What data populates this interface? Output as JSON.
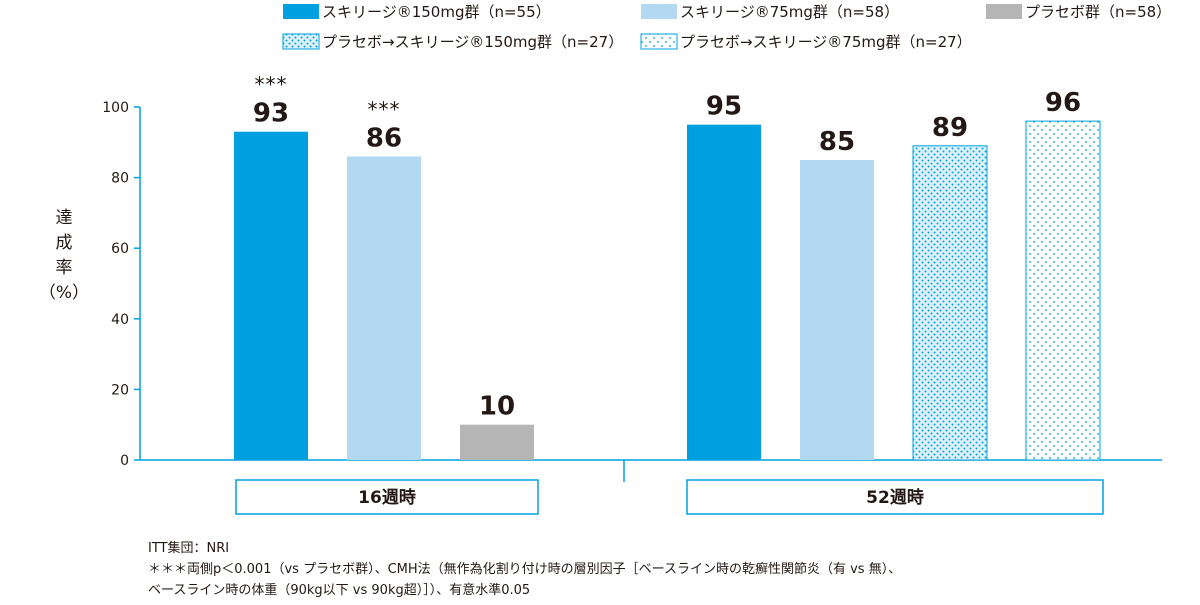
{
  "chart_data": {
    "type": "bar",
    "ylabel_chars": [
      "達",
      "成",
      "率"
    ],
    "ylabel_unit": "（%）",
    "ylim": [
      0,
      100
    ],
    "yticks": [
      0,
      20,
      40,
      60,
      80,
      100
    ],
    "grid": false,
    "legend_position": "top",
    "series": [
      {
        "name": "スキリージ®150mg群（n=55）",
        "color": "#00a0e0",
        "pattern": "solid"
      },
      {
        "name": "スキリージ®75mg群（n=58）",
        "color": "#b3d9f2",
        "pattern": "solid"
      },
      {
        "name": "プラセボ群（n=58）",
        "color": "#b5b5b6",
        "pattern": "solid"
      },
      {
        "name": "プラセボ→スキリージ®150mg群（n=27）",
        "color": "#00a0e0",
        "pattern": "dots-dense"
      },
      {
        "name": "プラセボ→スキリージ®75mg群（n=27）",
        "color": "#00a0e0",
        "pattern": "dots-sparse"
      }
    ],
    "groups": [
      {
        "label": "16週時",
        "bars": [
          {
            "series": 0,
            "value": 93,
            "label": "93",
            "sig": "***"
          },
          {
            "series": 1,
            "value": 86,
            "label": "86",
            "sig": "***"
          },
          {
            "series": 2,
            "value": 10,
            "label": "10",
            "sig": ""
          }
        ]
      },
      {
        "label": "52週時",
        "bars": [
          {
            "series": 0,
            "value": 95,
            "label": "95",
            "sig": ""
          },
          {
            "series": 1,
            "value": 85,
            "label": "85",
            "sig": ""
          },
          {
            "series": 3,
            "value": 89,
            "label": "89",
            "sig": ""
          },
          {
            "series": 4,
            "value": 96,
            "label": "96",
            "sig": ""
          }
        ]
      }
    ]
  },
  "notes": {
    "line1": "ITT集団：NRI",
    "line2": "＊＊＊両側p＜0.001（vs プラセボ群）、CMH法（無作為化割り付け時の層別因子［ベースライン時の乾癬性関節炎（有 vs 無）、",
    "line3": "ベースライン時の体重（90kg以下 vs 90kg超）］）、有意水準0.05"
  }
}
